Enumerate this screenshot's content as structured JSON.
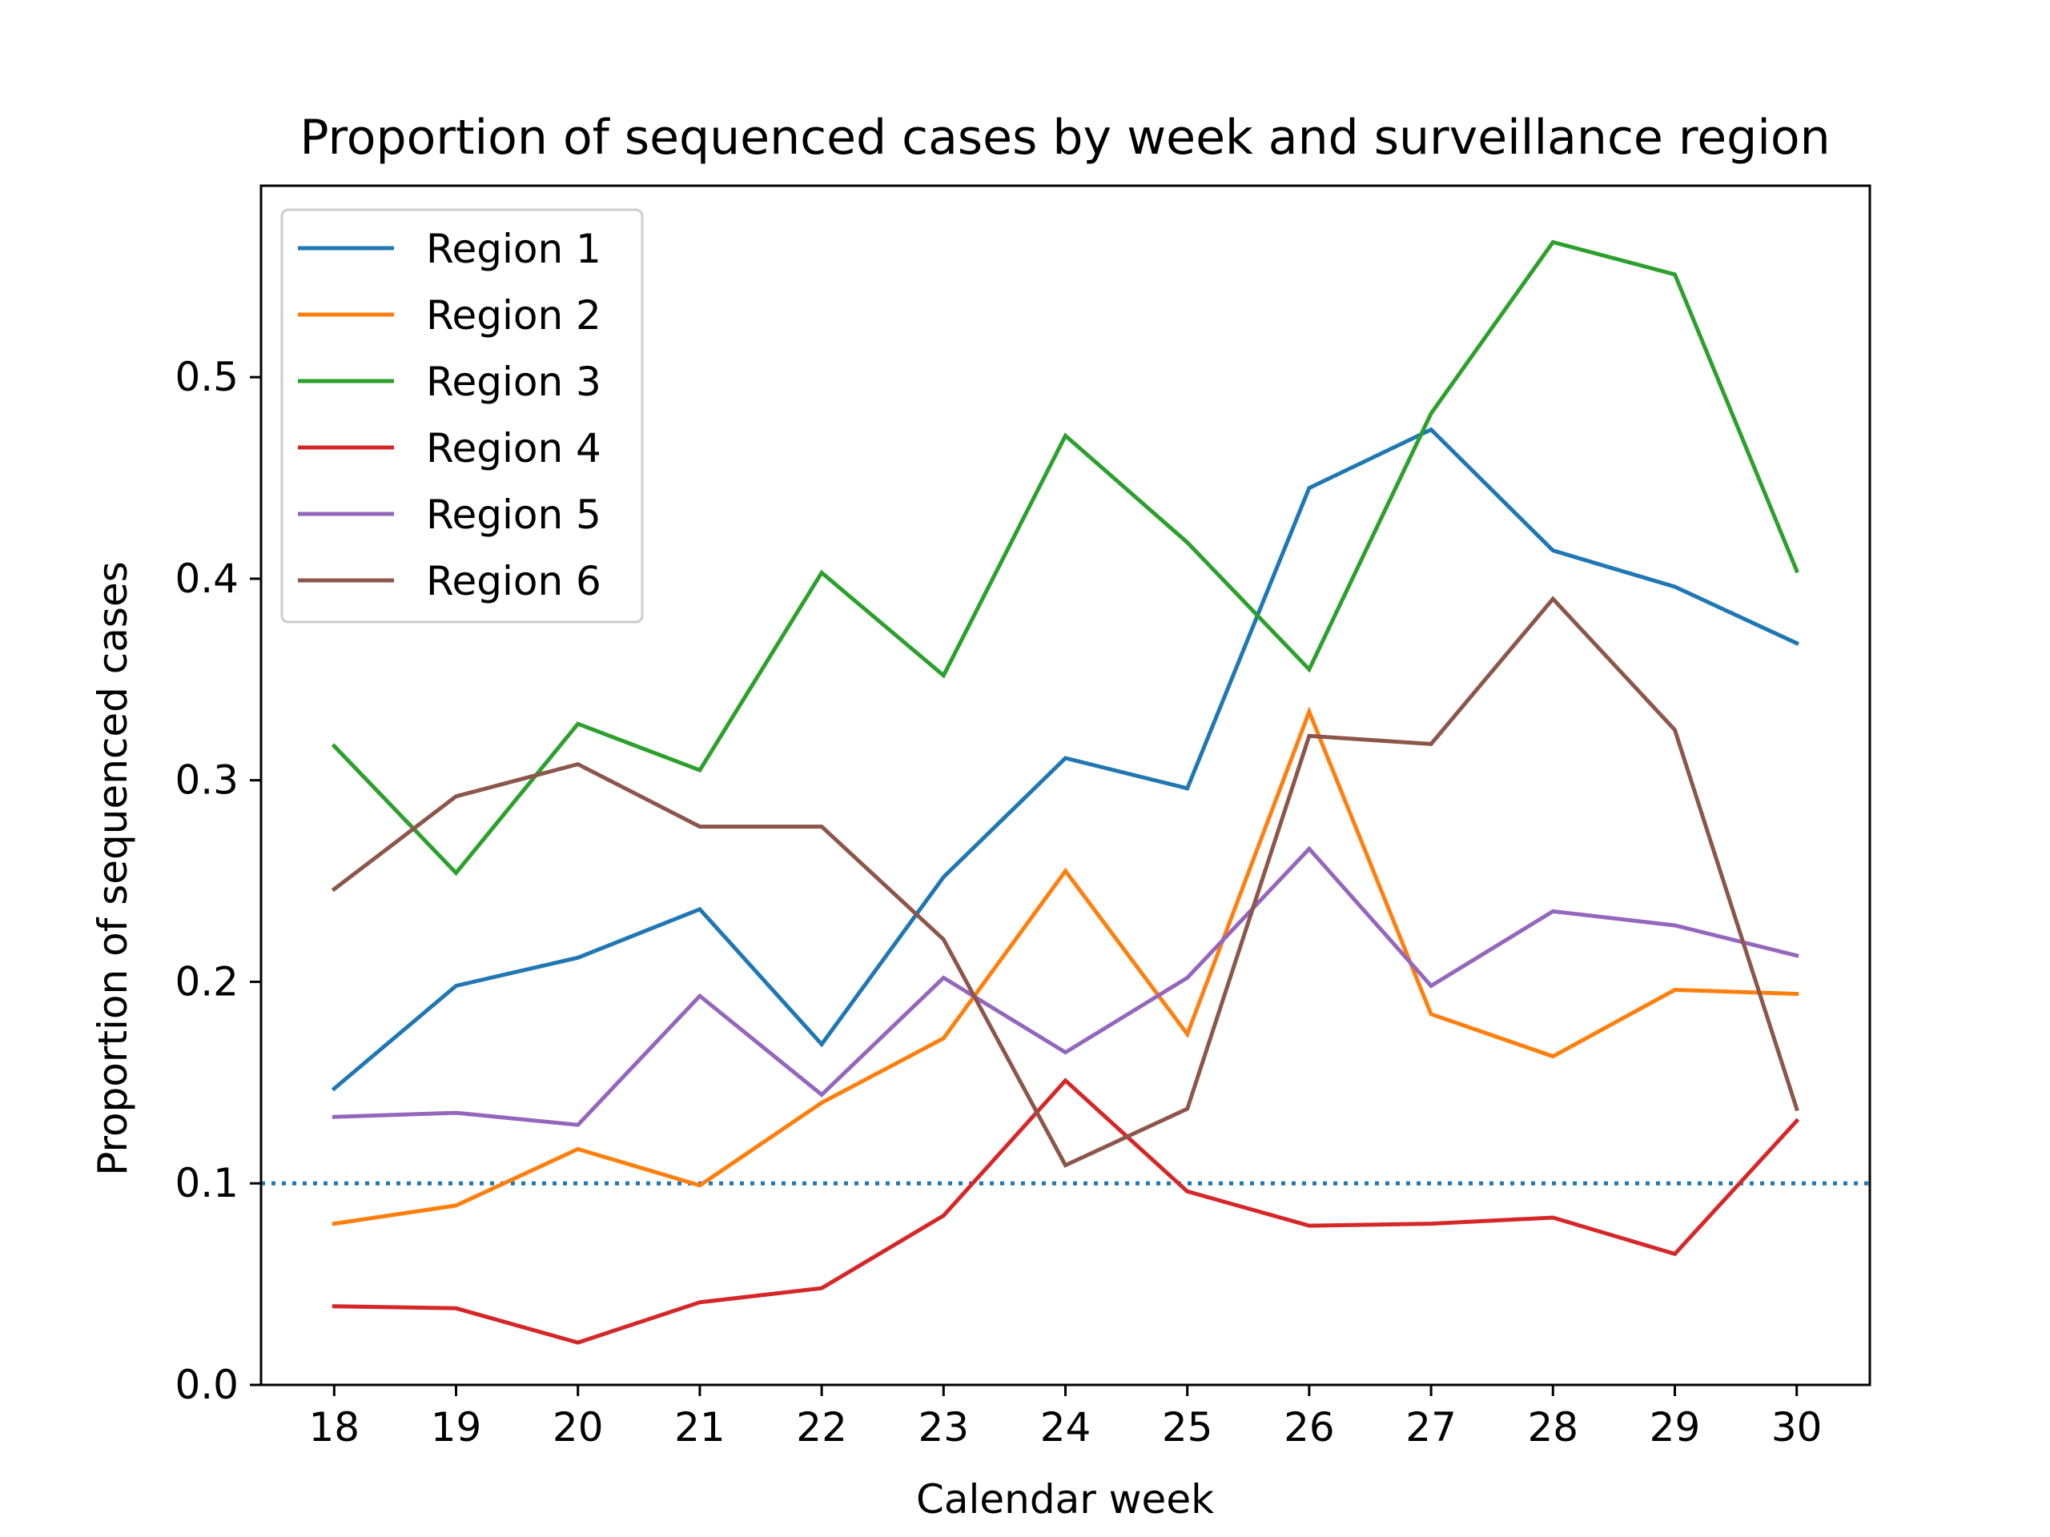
{
  "chart_data": {
    "type": "line",
    "title": "Proportion of sequenced cases by week and surveillance region",
    "xlabel": "Calendar week",
    "ylabel": "Proportion of sequenced cases",
    "x": [
      18,
      19,
      20,
      21,
      22,
      23,
      24,
      25,
      26,
      27,
      28,
      29,
      30
    ],
    "x_tick_labels": [
      "18",
      "19",
      "20",
      "21",
      "22",
      "23",
      "24",
      "25",
      "26",
      "27",
      "28",
      "29",
      "30"
    ],
    "y_ticks": [
      0.0,
      0.1,
      0.2,
      0.3,
      0.4,
      0.5
    ],
    "y_tick_labels": [
      "0.0",
      "0.1",
      "0.2",
      "0.3",
      "0.4",
      "0.5"
    ],
    "xlim": [
      17.4,
      30.6
    ],
    "ylim": [
      0.0,
      0.595
    ],
    "grid": false,
    "legend_position": "top-left",
    "reference_line": {
      "y": 0.1,
      "style": "dotted",
      "color": "#1f77b4"
    },
    "series": [
      {
        "name": "Region 1",
        "color": "#1f77b4",
        "values": [
          0.147,
          0.198,
          0.212,
          0.236,
          0.169,
          0.252,
          0.311,
          0.296,
          0.445,
          0.474,
          0.414,
          0.396,
          0.368
        ]
      },
      {
        "name": "Region 2",
        "color": "#ff7f0e",
        "values": [
          0.08,
          0.089,
          0.117,
          0.099,
          0.14,
          0.172,
          0.255,
          0.174,
          0.334,
          0.184,
          0.163,
          0.196,
          0.194
        ]
      },
      {
        "name": "Region 3",
        "color": "#2ca02c",
        "values": [
          0.317,
          0.254,
          0.328,
          0.305,
          0.403,
          0.352,
          0.471,
          0.418,
          0.355,
          0.482,
          0.567,
          0.551,
          0.404
        ]
      },
      {
        "name": "Region 4",
        "color": "#d62728",
        "values": [
          0.039,
          0.038,
          0.021,
          0.041,
          0.048,
          0.084,
          0.151,
          0.096,
          0.079,
          0.08,
          0.083,
          0.065,
          0.131
        ]
      },
      {
        "name": "Region 5",
        "color": "#9467bd",
        "values": [
          0.133,
          0.135,
          0.129,
          0.193,
          0.144,
          0.202,
          0.165,
          0.202,
          0.266,
          0.198,
          0.235,
          0.228,
          0.213
        ]
      },
      {
        "name": "Region 6",
        "color": "#8c564b",
        "values": [
          0.246,
          0.292,
          0.308,
          0.277,
          0.277,
          0.221,
          0.109,
          0.137,
          0.322,
          0.318,
          0.39,
          0.325,
          0.137
        ]
      }
    ]
  }
}
